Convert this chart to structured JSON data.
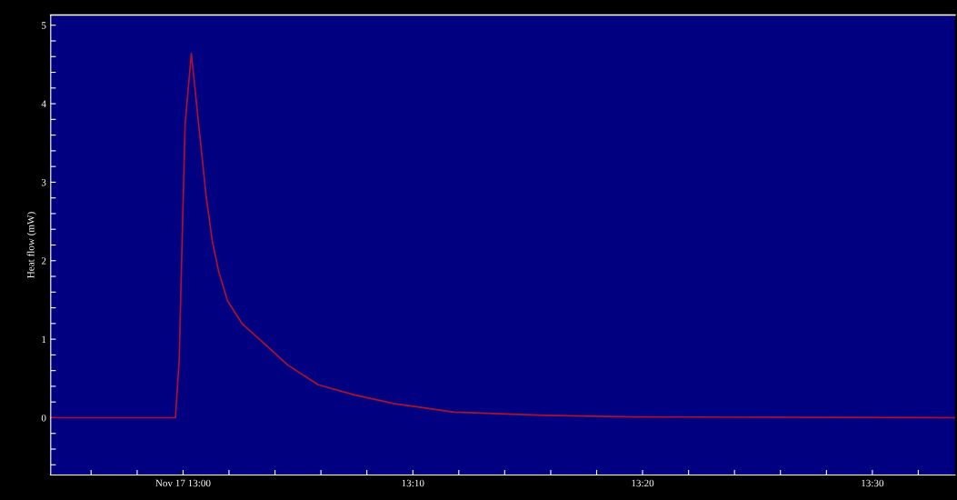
{
  "chart_data": {
    "type": "line",
    "ylabel": "Heat flow (mW)",
    "x": [
      12.904,
      12.9945,
      12.9972,
      12.9993,
      13.0015,
      13.006,
      13.0113,
      13.0168,
      13.0212,
      13.0257,
      13.0322,
      13.0432,
      13.0585,
      13.076,
      13.098,
      13.1243,
      13.1527,
      13.1967,
      13.2623,
      13.328,
      13.56
    ],
    "series": [
      {
        "color": "#b01030",
        "values": [
          0,
          0,
          0.74,
          2.25,
          3.74,
          4.64,
          3.74,
          2.81,
          2.25,
          1.87,
          1.49,
          1.19,
          0.95,
          0.67,
          0.42,
          0.29,
          0.18,
          0.07,
          0.03,
          0.01,
          0
        ]
      }
    ],
    "xlim": [
      12.904,
      13.56
    ],
    "xticks": [
      {
        "value": 12.9333,
        "label": null
      },
      {
        "value": 12.9667,
        "label": null
      },
      {
        "value": 13,
        "label": "Nov 17 13:00"
      },
      {
        "value": 13.0333,
        "label": null
      },
      {
        "value": 13.0667,
        "label": null
      },
      {
        "value": 13.1,
        "label": null
      },
      {
        "value": 13.1333,
        "label": null
      },
      {
        "value": 13.1667,
        "label": "13:10"
      },
      {
        "value": 13.2,
        "label": null
      },
      {
        "value": 13.2333,
        "label": null
      },
      {
        "value": 13.2667,
        "label": null
      },
      {
        "value": 13.3,
        "label": null
      },
      {
        "value": 13.3333,
        "label": "13:20"
      },
      {
        "value": 13.3667,
        "label": null
      },
      {
        "value": 13.4,
        "label": null
      },
      {
        "value": 13.4333,
        "label": null
      },
      {
        "value": 13.4667,
        "label": null
      },
      {
        "value": 13.5,
        "label": "13:30"
      },
      {
        "value": 13.5333,
        "label": null
      }
    ],
    "ylim": [
      -0.73,
      5.13
    ],
    "yticks": [
      {
        "value": -0.6,
        "label": null
      },
      {
        "value": -0.4,
        "label": null
      },
      {
        "value": -0.2,
        "label": null
      },
      0,
      {
        "value": 0.2,
        "label": null
      },
      {
        "value": 0.4,
        "label": null
      },
      {
        "value": 0.6,
        "label": null
      },
      {
        "value": 0.8,
        "label": null
      },
      1,
      {
        "value": 1.2,
        "label": null
      },
      {
        "value": 1.4,
        "label": null
      },
      {
        "value": 1.6,
        "label": null
      },
      {
        "value": 1.8,
        "label": null
      },
      2,
      {
        "value": 2.2,
        "label": null
      },
      {
        "value": 2.4,
        "label": null
      },
      {
        "value": 2.6,
        "label": null
      },
      {
        "value": 2.8,
        "label": null
      },
      3,
      {
        "value": 3.2,
        "label": null
      },
      {
        "value": 3.4,
        "label": null
      },
      {
        "value": 3.6,
        "label": null
      },
      {
        "value": 3.8,
        "label": null
      },
      4,
      {
        "value": 4.2,
        "label": null
      },
      {
        "value": 4.4,
        "label": null
      },
      {
        "value": 4.6,
        "label": null
      },
      {
        "value": 4.8,
        "label": null
      },
      5
    ],
    "grid": false,
    "legend": false,
    "marker": "none",
    "line_style": "solid"
  }
}
